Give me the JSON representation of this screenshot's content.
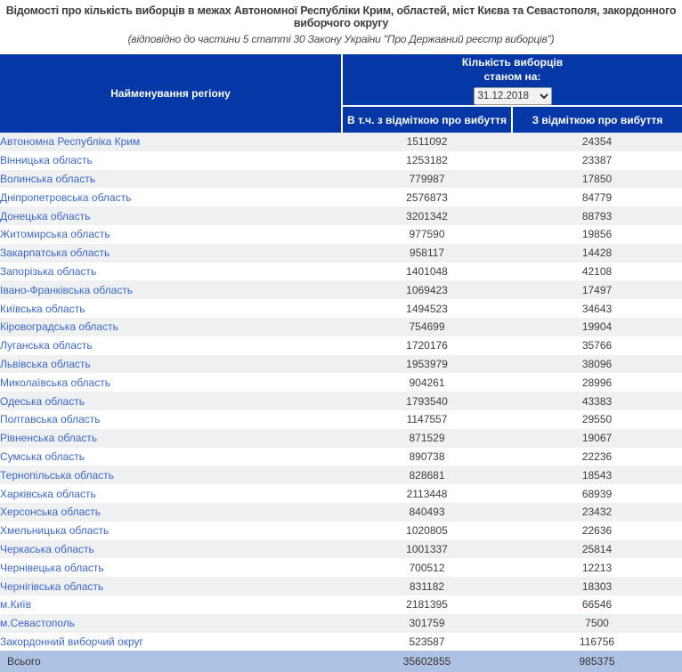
{
  "title": "Відомості про кількість виборців в межах Автономної Республіки Крим, областей, міст Києва та Севастополя, закордонного виборчого округу",
  "subtitle": "(відповідно до частини 5 статті 30 Закону України \"Про Державний реєстр виборців\")",
  "colors": {
    "header_bg": "#0538a6",
    "link": "#3c68cb",
    "odd_row_bg": "#eef0f2",
    "total_row_bg": "#aec3e3",
    "body_text": "#3d3d3d"
  },
  "table": {
    "region_header": "Найменування регіону",
    "count_header_line1": "Кількість виборців",
    "count_header_line2": "станом на:",
    "date_selected": "31.12.2018",
    "col2_header": "В т.ч. з відміткою про вибуття",
    "col3_header": "З відміткою про вибуття",
    "rows": [
      {
        "region": "Автономна Республіка Крим",
        "total": "1511092",
        "departed": "24354"
      },
      {
        "region": "Вінницька область",
        "total": "1253182",
        "departed": "23387"
      },
      {
        "region": "Волинська область",
        "total": "779987",
        "departed": "17850"
      },
      {
        "region": "Дніпропетровська область",
        "total": "2576873",
        "departed": "84779"
      },
      {
        "region": "Донецька область",
        "total": "3201342",
        "departed": "88793"
      },
      {
        "region": "Житомирська область",
        "total": "977590",
        "departed": "19856"
      },
      {
        "region": "Закарпатська область",
        "total": "958117",
        "departed": "14428"
      },
      {
        "region": "Запорізька область",
        "total": "1401048",
        "departed": "42108"
      },
      {
        "region": "Івано-Франківська область",
        "total": "1069423",
        "departed": "17497"
      },
      {
        "region": "Київська область",
        "total": "1494523",
        "departed": "34643"
      },
      {
        "region": "Кіровоградська область",
        "total": "754699",
        "departed": "19904"
      },
      {
        "region": "Луганська область",
        "total": "1720176",
        "departed": "35766"
      },
      {
        "region": "Львівська область",
        "total": "1953979",
        "departed": "38096"
      },
      {
        "region": "Миколаївська область",
        "total": "904261",
        "departed": "28996"
      },
      {
        "region": "Одеська область",
        "total": "1793540",
        "departed": "43383"
      },
      {
        "region": "Полтавська область",
        "total": "1147557",
        "departed": "29550"
      },
      {
        "region": "Рівненська область",
        "total": "871529",
        "departed": "19067"
      },
      {
        "region": "Сумська область",
        "total": "890738",
        "departed": "22236"
      },
      {
        "region": "Тернопільська область",
        "total": "828681",
        "departed": "18543"
      },
      {
        "region": "Харківська область",
        "total": "2113448",
        "departed": "68939"
      },
      {
        "region": "Херсонська область",
        "total": "840493",
        "departed": "23432"
      },
      {
        "region": "Хмельницька область",
        "total": "1020805",
        "departed": "22636"
      },
      {
        "region": "Черкаська область",
        "total": "1001337",
        "departed": "25814"
      },
      {
        "region": "Чернівецька область",
        "total": "700512",
        "departed": "12213"
      },
      {
        "region": "Чернігівська область",
        "total": "831182",
        "departed": "18303"
      },
      {
        "region": "м.Київ",
        "total": "2181395",
        "departed": "66546"
      },
      {
        "region": "м.Севастополь",
        "total": "301759",
        "departed": "7500"
      },
      {
        "region": "Закордонний виборчий округ",
        "total": "523587",
        "departed": "116756"
      }
    ],
    "total_row": {
      "label": "Всього",
      "total": "35602855",
      "departed": "985375"
    }
  }
}
